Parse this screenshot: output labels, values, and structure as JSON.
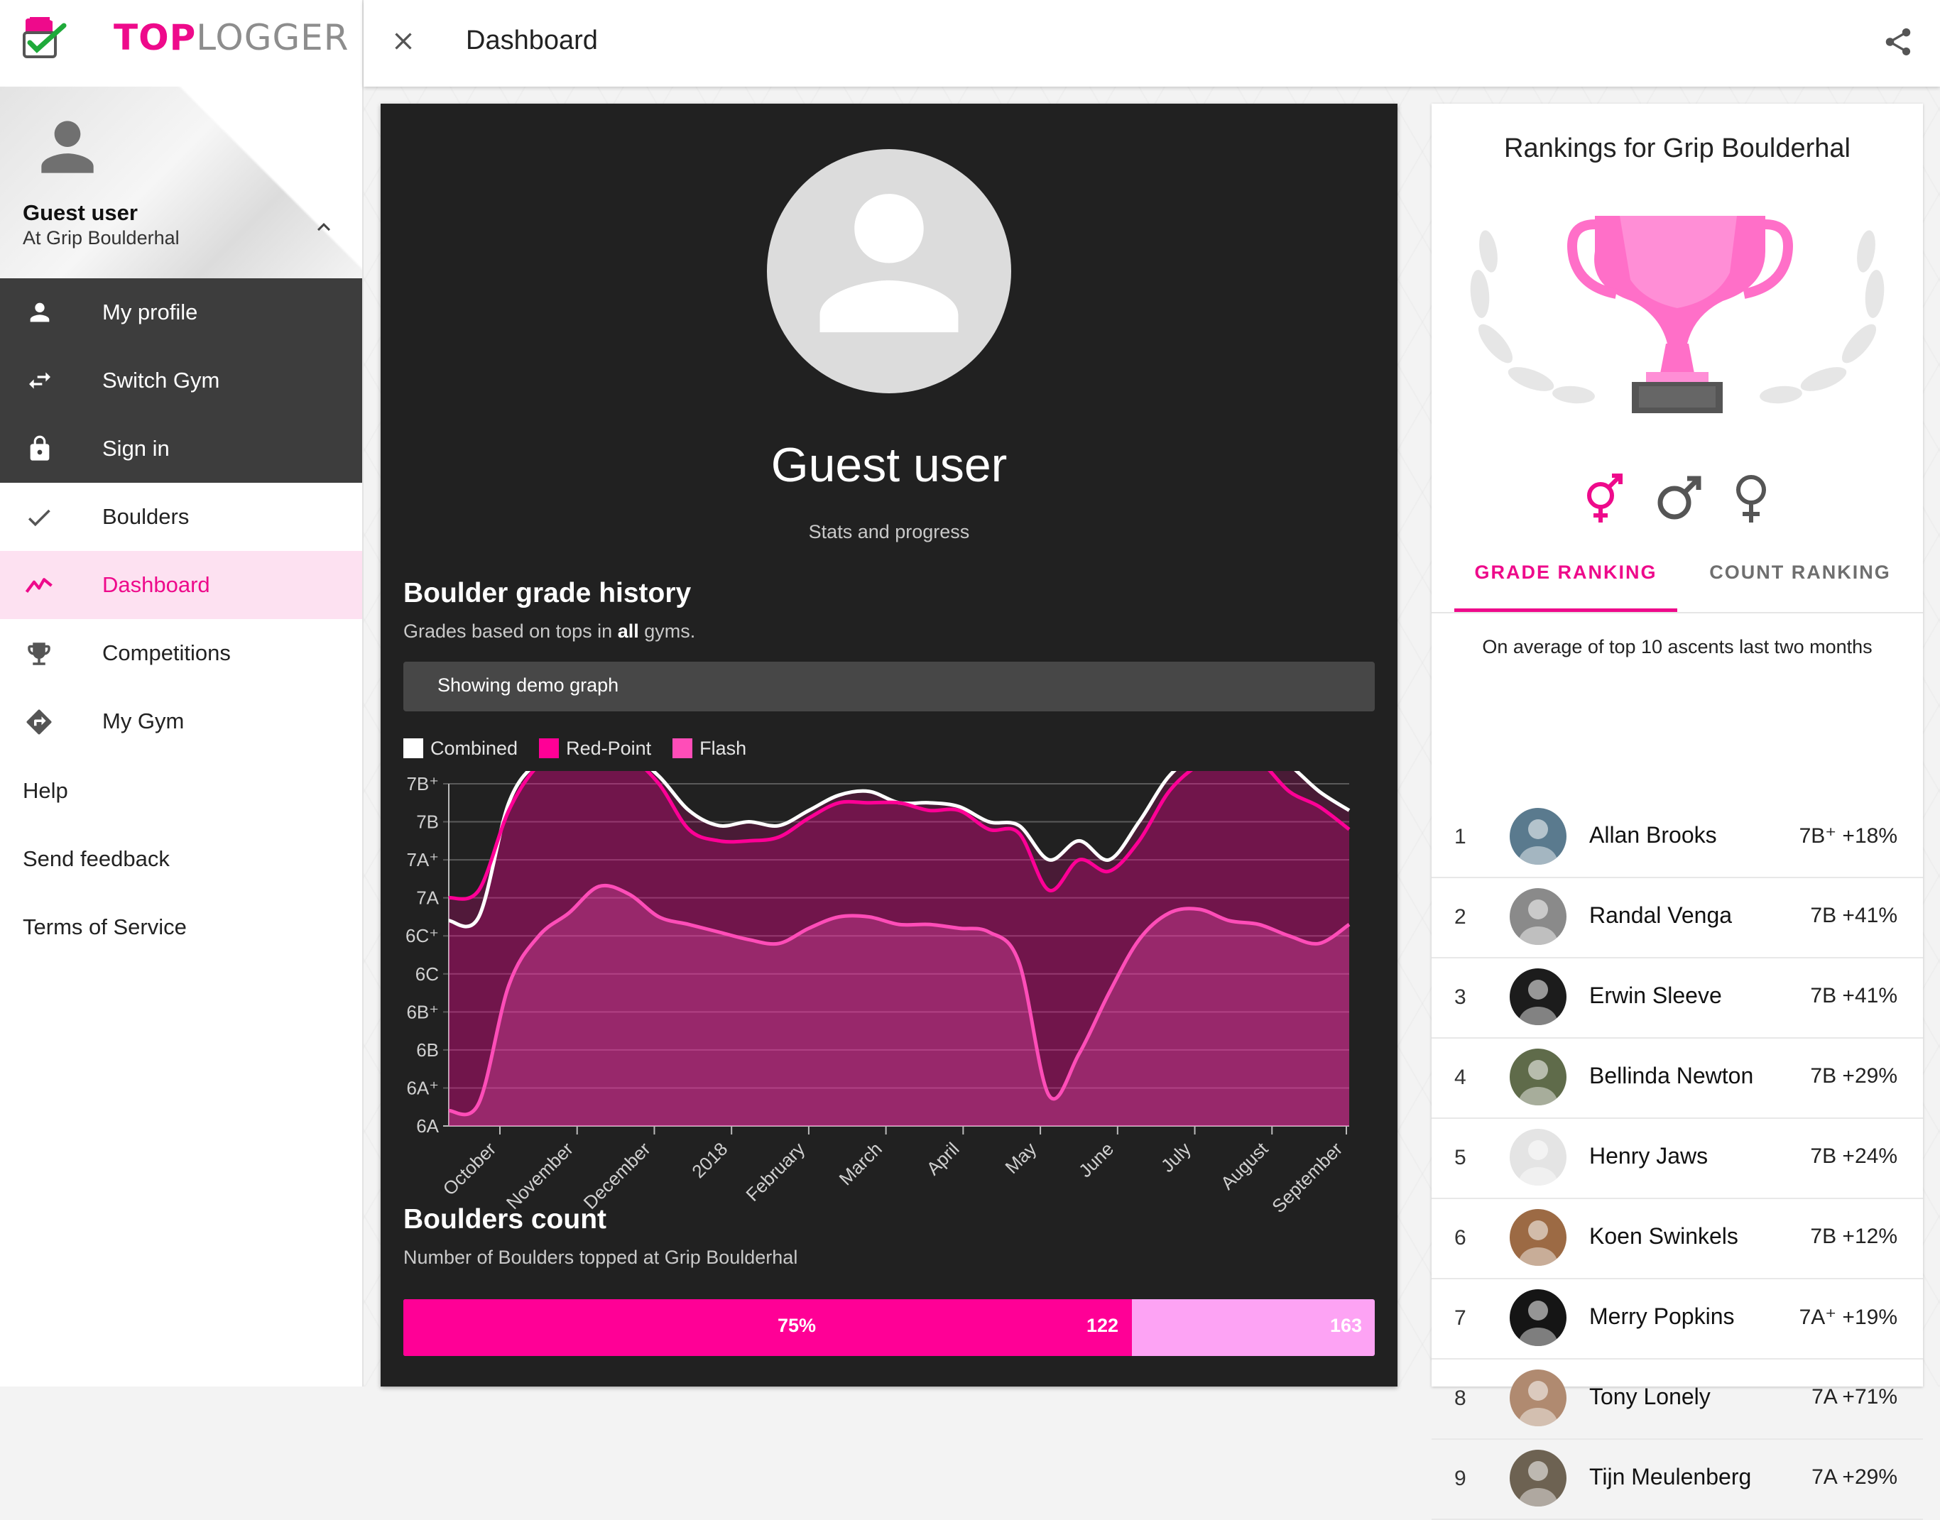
{
  "brand": {
    "top": "TOP",
    "logger": "LOGGER"
  },
  "sidebar": {
    "user_name": "Guest user",
    "user_gym": "At Grip Boulderhal",
    "account_menu": [
      {
        "label": "My profile",
        "icon": "person-icon"
      },
      {
        "label": "Switch Gym",
        "icon": "swap-icon"
      },
      {
        "label": "Sign in",
        "icon": "lock-icon"
      }
    ],
    "nav": [
      {
        "label": "Boulders",
        "icon": "check-icon",
        "active": false
      },
      {
        "label": "Dashboard",
        "icon": "trending-icon",
        "active": true
      },
      {
        "label": "Competitions",
        "icon": "trophy-icon",
        "active": false
      },
      {
        "label": "My Gym",
        "icon": "directions-icon",
        "active": false
      }
    ],
    "links": [
      "Help",
      "Send feedback",
      "Terms of Service"
    ]
  },
  "topbar": {
    "title": "Dashboard"
  },
  "stats": {
    "name": "Guest user",
    "subtitle": "Stats and progress",
    "history_title": "Boulder grade history",
    "history_sub_before": "Grades based on tops in ",
    "history_sub_bold": "all",
    "history_sub_after": " gyms.",
    "demo_notice": "Showing demo graph",
    "count_title": "Boulders count",
    "count_sub": "Number of Boulders topped at Grip Boulderhal",
    "count": {
      "percent_label": "75%",
      "topped": "122",
      "total": "163",
      "fraction": 0.75
    }
  },
  "chart_data": {
    "type": "area",
    "y_ticks": [
      "6A",
      "6A⁺",
      "6B",
      "6B⁺",
      "6C",
      "6C⁺",
      "7A",
      "7A⁺",
      "7B",
      "7B⁺"
    ],
    "x_ticks": [
      "October",
      "November",
      "December",
      "2018",
      "February",
      "March",
      "April",
      "May",
      "June",
      "July",
      "August",
      "September"
    ],
    "colors": {
      "combined": "#ffffff",
      "redpoint": "#ff0096",
      "flash": "#ff4db8"
    },
    "series": [
      {
        "name": "Combined",
        "values": [
          5.4,
          5.5,
          8.5,
          9.6,
          10.0,
          9.8,
          9.8,
          9.2,
          8.3,
          7.9,
          8.0,
          7.9,
          8.3,
          8.7,
          8.8,
          8.5,
          8.5,
          8.4,
          8.0,
          7.9,
          7.0,
          7.5,
          7.0,
          8.0,
          9.2,
          9.8,
          10.0,
          10.0,
          9.5,
          8.8,
          8.3
        ]
      },
      {
        "name": "Red-Point",
        "values": [
          6.0,
          6.2,
          8.3,
          9.5,
          9.9,
          9.7,
          9.7,
          9.0,
          7.8,
          7.5,
          7.5,
          7.6,
          8.1,
          8.5,
          8.5,
          8.5,
          8.3,
          8.3,
          7.8,
          7.7,
          6.2,
          7.0,
          6.7,
          7.5,
          8.8,
          9.5,
          9.8,
          9.6,
          8.8,
          8.4,
          7.8
        ]
      },
      {
        "name": "Flash",
        "values": [
          0.4,
          0.6,
          3.7,
          5.0,
          5.6,
          6.3,
          6.1,
          5.5,
          5.3,
          5.1,
          4.9,
          4.8,
          5.2,
          5.5,
          5.5,
          5.3,
          5.3,
          5.2,
          5.1,
          4.3,
          0.8,
          1.9,
          3.5,
          4.9,
          5.6,
          5.7,
          5.4,
          5.3,
          5.0,
          4.8,
          5.3
        ]
      }
    ]
  },
  "rankings": {
    "title": "Rankings for Grip Boulderhal",
    "tabs": [
      "GRADE RANKING",
      "COUNT RANKING"
    ],
    "note": "On average of top 10 ascents last two months",
    "rows": [
      {
        "pos": "1",
        "name": "Allan Brooks",
        "grade": "7B⁺ +18%",
        "avatar": "#5a7a8e"
      },
      {
        "pos": "2",
        "name": "Randal Venga",
        "grade": "7B +41%",
        "avatar": "#8a8a8a"
      },
      {
        "pos": "3",
        "name": "Erwin Sleeve",
        "grade": "7B +41%",
        "avatar": "#1c1c1c"
      },
      {
        "pos": "4",
        "name": "Bellinda Newton",
        "grade": "7B +29%",
        "avatar": "#5f6b4a"
      },
      {
        "pos": "5",
        "name": "Henry Jaws",
        "grade": "7B +24%",
        "avatar": "#e4e4e4"
      },
      {
        "pos": "6",
        "name": "Koen Swinkels",
        "grade": "7B +12%",
        "avatar": "#9c6a44"
      },
      {
        "pos": "7",
        "name": "Merry Popkins",
        "grade": "7A⁺ +19%",
        "avatar": "#151515"
      },
      {
        "pos": "8",
        "name": "Tony Lonely",
        "grade": "7A +71%",
        "avatar": "#b08a70"
      },
      {
        "pos": "9",
        "name": "Tijn Meulenberg",
        "grade": "7A +29%",
        "avatar": "#6d6252"
      }
    ]
  }
}
